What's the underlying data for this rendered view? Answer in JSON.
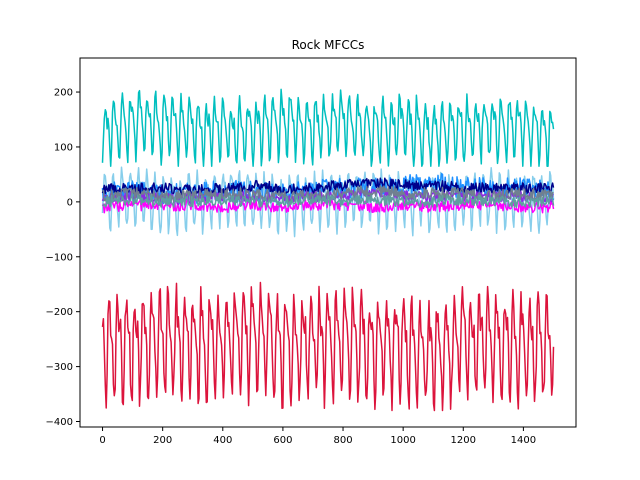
{
  "chart_data": {
    "type": "line",
    "title": "Rock MFCCs",
    "xlabel": "",
    "ylabel": "",
    "xlim": [
      -75,
      1575
    ],
    "ylim": [
      -410,
      262
    ],
    "x_ticks": [
      0,
      200,
      400,
      600,
      800,
      1000,
      1200,
      1400
    ],
    "x_tick_labels": [
      "0",
      "200",
      "400",
      "600",
      "800",
      "1000",
      "1200",
      "1400"
    ],
    "y_ticks": [
      -400,
      -300,
      -200,
      -100,
      0,
      100,
      200
    ],
    "y_tick_labels": [
      "−400",
      "−300",
      "−200",
      "−100",
      "0",
      "100",
      "200"
    ],
    "grid": false,
    "legend": false,
    "series_samples_x": [
      0,
      100,
      200,
      300,
      400,
      500,
      600,
      700,
      800,
      900,
      1000,
      1100,
      1200,
      1300,
      1400,
      1500
    ],
    "series": [
      {
        "color": "#00BFBF",
        "values": [
          125,
          150,
          140,
          135,
          130,
          135,
          145,
          140,
          145,
          130,
          140,
          125,
          135,
          140,
          135,
          120
        ],
        "min": 65,
        "max": 231
      },
      {
        "color": "#87CEEB",
        "values": [
          5,
          15,
          0,
          5,
          10,
          5,
          0,
          5,
          10,
          10,
          5,
          5,
          10,
          10,
          5,
          5
        ],
        "min": -78,
        "max": 68
      },
      {
        "color": "#1E90FF",
        "values": [
          15,
          20,
          15,
          15,
          20,
          20,
          15,
          20,
          25,
          25,
          30,
          35,
          25,
          25,
          25,
          20
        ],
        "min": -10,
        "max": 75
      },
      {
        "color": "#00008B",
        "values": [
          25,
          25,
          25,
          20,
          25,
          30,
          25,
          25,
          30,
          35,
          30,
          30,
          25,
          25,
          25,
          25
        ],
        "min": 5,
        "max": 50
      },
      {
        "color": "#8A2BE2",
        "values": [
          5,
          10,
          5,
          5,
          10,
          10,
          5,
          10,
          10,
          15,
          10,
          10,
          10,
          10,
          10,
          5
        ],
        "min": -15,
        "max": 30
      },
      {
        "color": "#FF00FF",
        "values": [
          -10,
          -5,
          -10,
          -5,
          -10,
          -5,
          -10,
          -5,
          -5,
          -10,
          -5,
          -10,
          -5,
          -5,
          -10,
          -10
        ],
        "min": -30,
        "max": 15
      },
      {
        "color": "#708090",
        "values": [
          10,
          15,
          10,
          10,
          15,
          15,
          10,
          10,
          15,
          20,
          15,
          15,
          15,
          10,
          15,
          10
        ],
        "min": -10,
        "max": 40
      },
      {
        "color": "#5F9EA0",
        "values": [
          0,
          5,
          0,
          0,
          5,
          0,
          0,
          5,
          0,
          5,
          0,
          0,
          5,
          0,
          0,
          0
        ],
        "min": -20,
        "max": 25
      },
      {
        "color": "#DC143C",
        "values": [
          -250,
          -260,
          -245,
          -255,
          -250,
          -245,
          -260,
          -255,
          -250,
          -265,
          -260,
          -280,
          -255,
          -250,
          -260,
          -250
        ],
        "min": -380,
        "max": -102
      }
    ]
  }
}
